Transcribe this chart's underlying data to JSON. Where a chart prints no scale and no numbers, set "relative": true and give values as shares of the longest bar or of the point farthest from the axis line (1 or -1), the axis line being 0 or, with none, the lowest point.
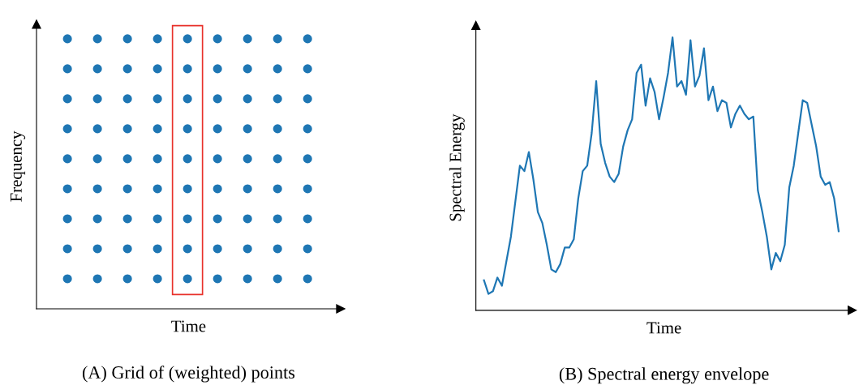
{
  "chart_data": [
    {
      "type": "other",
      "title": "(A) Grid of (weighted) points",
      "xlabel": "Time",
      "ylabel": "Frequency"
    },
    {
      "type": "line",
      "title": "(B) Spectral energy envelope",
      "xlabel": "Time",
      "ylabel": "Spectral Energy",
      "relative": true,
      "marker": "none",
      "line_style": "solid",
      "legend": false,
      "categories": [
        null,
        null,
        null,
        null,
        null,
        null,
        null,
        null,
        null,
        null,
        null,
        null,
        null,
        null,
        null,
        null,
        null,
        null,
        null,
        null,
        null,
        null,
        null,
        null,
        null,
        null,
        null,
        null,
        null,
        null,
        null,
        null,
        null,
        null,
        null,
        null,
        null,
        null,
        null,
        null,
        null,
        null,
        null,
        null,
        null,
        null,
        null,
        null,
        null,
        null,
        null,
        null,
        null,
        null,
        null,
        null,
        null,
        null,
        null,
        null,
        null,
        null,
        null,
        null,
        null,
        null,
        null,
        null,
        null,
        null,
        null,
        null,
        null,
        null,
        null,
        null,
        null,
        null,
        null,
        null
      ],
      "series": [
        {
          "color": "#1f77b4",
          "values": [
            0.11,
            0.06,
            0.07,
            0.12,
            0.09,
            0.18,
            0.27,
            0.4,
            0.53,
            0.51,
            0.58,
            0.48,
            0.36,
            0.32,
            0.24,
            0.15,
            0.14,
            0.17,
            0.23,
            0.23,
            0.26,
            0.41,
            0.51,
            0.53,
            0.65,
            0.84,
            0.61,
            0.54,
            0.49,
            0.47,
            0.5,
            0.6,
            0.66,
            0.7,
            0.87,
            0.9,
            0.75,
            0.85,
            0.8,
            0.7,
            0.78,
            0.87,
            1.0,
            0.82,
            0.84,
            0.79,
            0.99,
            0.82,
            0.86,
            0.96,
            0.77,
            0.82,
            0.73,
            0.77,
            0.76,
            0.67,
            0.72,
            0.75,
            0.72,
            0.7,
            0.71,
            0.44,
            0.36,
            0.27,
            0.15,
            0.21,
            0.18,
            0.24,
            0.45,
            0.53,
            0.65,
            0.77,
            0.76,
            0.68,
            0.6,
            0.49,
            0.46,
            0.47,
            0.41,
            0.29
          ]
        }
      ]
    }
  ]
}
